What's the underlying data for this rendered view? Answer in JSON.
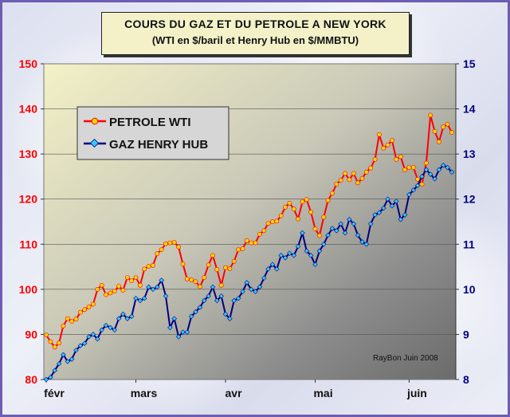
{
  "chart_data": {
    "type": "line",
    "title": "COURS DU GAZ ET DU PETROLE A NEW YORK",
    "subtitle": "(WTI en $/baril et Henry Hub en $/MMBTU)",
    "x_tick_labels": [
      "févr",
      "mars",
      "avr",
      "mai",
      "juin"
    ],
    "annotation": "RayBon Juin 2008",
    "legend_position": "top-left",
    "grid": "horizontal",
    "y_left": {
      "min": 80,
      "max": 150,
      "ticks": [
        80,
        90,
        100,
        110,
        120,
        130,
        140,
        150
      ],
      "color": "#ff0000"
    },
    "y_right": {
      "min": 8,
      "max": 15,
      "ticks": [
        8,
        9,
        10,
        11,
        12,
        13,
        14,
        15
      ],
      "color": "#000080"
    },
    "series": [
      {
        "name": "PETROLE WTI",
        "axis": "left",
        "color": "#ff0000",
        "marker_color": "#ffd700",
        "values": [
          89.9,
          88.4,
          87.2,
          88.1,
          91.9,
          93.5,
          92.9,
          93.4,
          94.9,
          95.5,
          96.1,
          96.7,
          100.0,
          100.9,
          98.8,
          99.2,
          99.6,
          100.7,
          99.8,
          102.6,
          101.9,
          102.6,
          100.9,
          104.5,
          105.1,
          105.3,
          107.9,
          108.8,
          110.1,
          110.3,
          110.4,
          109.4,
          105.6,
          102.3,
          102.1,
          101.7,
          100.6,
          102.6,
          105.4,
          107.5,
          104.4,
          100.9,
          104.8,
          104.6,
          106.2,
          108.8,
          109.0,
          110.8,
          110.3,
          110.3,
          112.2,
          113.0,
          114.6,
          115.0,
          115.1,
          116.3,
          118.2,
          119.1,
          117.8,
          115.6,
          119.4,
          119.9,
          117.1,
          113.4,
          111.9,
          116.0,
          119.7,
          121.3,
          123.3,
          124.2,
          125.7,
          124.3,
          125.7,
          123.6,
          124.6,
          126.0,
          126.9,
          128.8,
          134.3,
          131.3,
          132.0,
          133.0,
          128.8,
          129.4,
          126.5,
          127.0,
          127.0,
          124.4,
          123.3,
          128.0,
          138.6,
          135.0,
          132.7,
          136.0,
          136.6,
          134.8
        ]
      },
      {
        "name": "GAZ HENRY HUB",
        "axis": "right",
        "color": "#000080",
        "marker_color": "#33ccff",
        "values": [
          8.0,
          8.05,
          8.2,
          8.35,
          8.55,
          8.4,
          8.45,
          8.65,
          8.75,
          8.8,
          8.95,
          9.0,
          8.9,
          9.1,
          9.2,
          9.15,
          9.1,
          9.35,
          9.45,
          9.35,
          9.4,
          9.8,
          9.75,
          9.8,
          10.05,
          10.0,
          10.05,
          10.2,
          9.85,
          9.15,
          9.35,
          8.95,
          9.05,
          9.05,
          9.4,
          9.5,
          9.6,
          9.75,
          9.85,
          10.05,
          9.75,
          9.85,
          9.45,
          9.35,
          9.75,
          9.8,
          9.95,
          10.15,
          10.0,
          9.95,
          10.05,
          10.25,
          10.45,
          10.55,
          10.45,
          10.75,
          10.7,
          10.8,
          10.75,
          10.95,
          11.25,
          10.85,
          10.75,
          10.55,
          10.85,
          11.0,
          11.2,
          11.35,
          11.3,
          11.45,
          11.25,
          11.55,
          11.45,
          11.2,
          11.05,
          11.0,
          11.45,
          11.65,
          11.7,
          11.8,
          12.0,
          11.85,
          11.95,
          11.55,
          11.65,
          12.1,
          12.2,
          12.3,
          12.5,
          12.65,
          12.55,
          12.45,
          12.65,
          12.75,
          12.7,
          12.6
        ]
      }
    ]
  }
}
